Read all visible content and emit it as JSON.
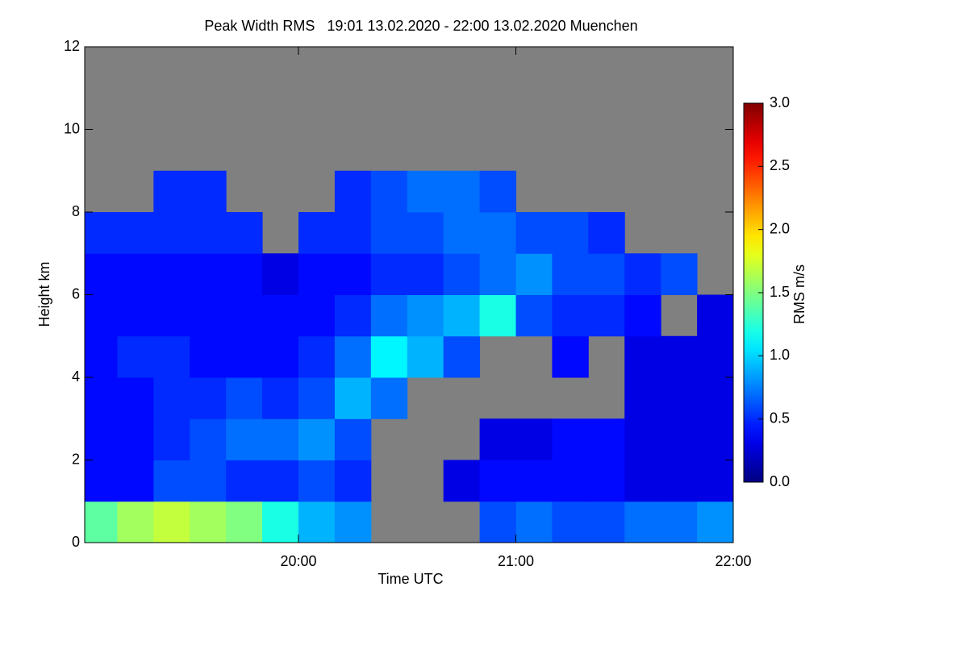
{
  "chart_data": {
    "type": "heatmap",
    "title": "Peak Width RMS   19:01 13.02.2020 - 22:00 13.02.2020 Muenchen",
    "xlabel": "Time UTC",
    "ylabel": "Height km",
    "colorbar_label": "RMS m/s",
    "colormap": "jet",
    "missing_color": "#808080",
    "xlim": [
      1141,
      1320
    ],
    "xticks": [
      {
        "value": 1200,
        "label": "20:00"
      },
      {
        "value": 1260,
        "label": "21:00"
      },
      {
        "value": 1320,
        "label": "22:00"
      }
    ],
    "ylim": [
      0,
      12
    ],
    "yticks": [
      0,
      2,
      4,
      6,
      8,
      10,
      12
    ],
    "clim": [
      0,
      3
    ],
    "cticks": [
      {
        "value": 0,
        "label": "0.0"
      },
      {
        "value": 0.5,
        "label": "0.5"
      },
      {
        "value": 1,
        "label": "1.0"
      },
      {
        "value": 1.5,
        "label": "1.5"
      },
      {
        "value": 2,
        "label": "2.0"
      },
      {
        "value": 2.5,
        "label": "2.5"
      },
      {
        "value": 3,
        "label": "3.0"
      }
    ],
    "xbins": [
      1141,
      1150,
      1160,
      1170,
      1180,
      1190,
      1200,
      1210,
      1220,
      1230,
      1240,
      1250,
      1260,
      1270,
      1280,
      1290,
      1300,
      1310,
      1320
    ],
    "ybins": [
      0,
      1,
      2,
      3,
      4,
      5,
      6,
      7,
      8,
      9,
      10,
      11,
      12
    ],
    "z": [
      [
        1.4,
        1.6,
        1.7,
        1.6,
        1.5,
        1.2,
        0.9,
        0.8,
        null,
        null,
        null,
        0.6,
        0.7,
        0.6,
        0.6,
        0.7,
        0.7,
        0.8
      ],
      [
        0.4,
        0.4,
        0.6,
        0.6,
        0.5,
        0.5,
        0.6,
        0.5,
        null,
        null,
        0.3,
        0.4,
        0.4,
        0.4,
        0.4,
        0.3,
        0.3,
        0.3
      ],
      [
        0.4,
        0.4,
        0.5,
        0.6,
        0.7,
        0.7,
        0.8,
        0.6,
        null,
        null,
        null,
        0.3,
        0.3,
        0.4,
        0.4,
        0.3,
        0.3,
        0.3
      ],
      [
        0.4,
        0.4,
        0.5,
        0.5,
        0.6,
        0.5,
        0.6,
        0.9,
        0.7,
        null,
        null,
        null,
        null,
        null,
        null,
        0.3,
        0.3,
        0.3
      ],
      [
        0.4,
        0.5,
        0.5,
        0.4,
        0.4,
        0.4,
        0.5,
        0.7,
        1.1,
        0.9,
        0.6,
        null,
        null,
        0.4,
        null,
        0.3,
        0.3,
        0.3
      ],
      [
        0.4,
        0.4,
        0.4,
        0.4,
        0.4,
        0.4,
        0.4,
        0.5,
        0.7,
        0.8,
        0.9,
        1.2,
        0.6,
        0.5,
        0.5,
        0.4,
        null,
        0.3
      ],
      [
        0.4,
        0.4,
        0.4,
        0.4,
        0.4,
        0.3,
        0.4,
        0.4,
        0.5,
        0.5,
        0.6,
        0.7,
        0.8,
        0.6,
        0.6,
        0.5,
        0.6,
        null
      ],
      [
        0.5,
        0.5,
        0.5,
        0.5,
        0.5,
        null,
        0.5,
        0.5,
        0.6,
        0.6,
        0.7,
        0.7,
        0.6,
        0.6,
        0.5,
        null,
        null,
        null
      ],
      [
        null,
        null,
        0.5,
        0.5,
        null,
        null,
        null,
        0.5,
        0.6,
        0.7,
        0.7,
        0.6,
        null,
        null,
        null,
        null,
        null,
        null
      ],
      [
        null,
        null,
        null,
        null,
        null,
        null,
        null,
        null,
        null,
        null,
        null,
        null,
        null,
        null,
        null,
        null,
        null,
        null
      ],
      [
        null,
        null,
        null,
        null,
        null,
        null,
        null,
        null,
        null,
        null,
        null,
        null,
        null,
        null,
        null,
        null,
        null,
        null
      ],
      [
        null,
        null,
        null,
        null,
        null,
        null,
        null,
        null,
        null,
        null,
        null,
        null,
        null,
        null,
        null,
        null,
        null,
        null
      ]
    ]
  }
}
